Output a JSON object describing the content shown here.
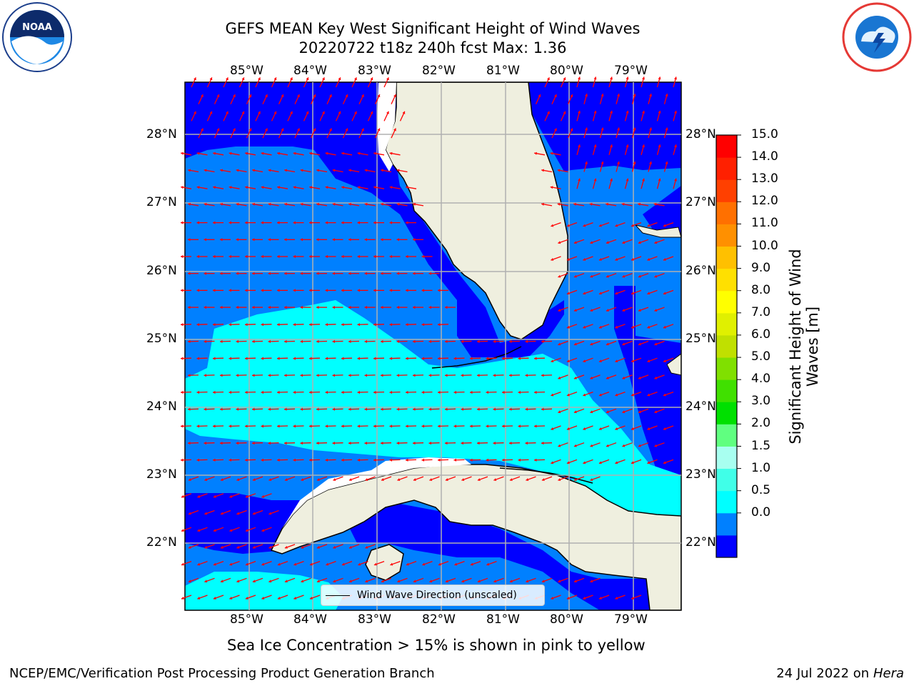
{
  "title": {
    "line1": "GEFS MEAN Key West Significant Height of Wind Waves",
    "line2": "20220722 t18z 240h fcst   Max: 1.36"
  },
  "axes": {
    "lon_labels": [
      "85°W",
      "84°W",
      "83°W",
      "82°W",
      "81°W",
      "80°W",
      "79°W"
    ],
    "lat_labels": [
      "28°N",
      "27°N",
      "26°N",
      "25°N",
      "24°N",
      "23°N",
      "22°N"
    ]
  },
  "legend": {
    "label": "Wind Wave Direction (unscaled)"
  },
  "colorbar": {
    "label": "Significant Height of Wind Waves [m]",
    "ticks": [
      "15.0",
      "14.0",
      "13.0",
      "12.0",
      "11.0",
      "10.0",
      "9.0",
      "8.0",
      "7.0",
      "6.0",
      "5.0",
      "4.0",
      "3.0",
      "2.0",
      "1.5",
      "1.0",
      "0.5",
      "0.0"
    ],
    "colors": [
      "#0000ff",
      "#0080ff",
      "#00ffff",
      "#40ffe8",
      "#a8fff0",
      "#60ff80",
      "#00e000",
      "#40e000",
      "#80e000",
      "#c0e000",
      "#e0f000",
      "#ffff00",
      "#ffe000",
      "#ffc000",
      "#ff9000",
      "#ff7000",
      "#ff4000",
      "#ff2000",
      "#ff0000"
    ]
  },
  "colors": {
    "land": "#efefdf",
    "arrow": "#ff0000",
    "grid": "#b0b0b0"
  },
  "sea_ice_note": "Sea Ice Concentration > 15% is shown in pink to yellow",
  "footer": {
    "left": "NCEP/EMC/Verification Post Processing Product Generation Branch",
    "right_date": "24 Jul 2022 on",
    "right_host": "Hera"
  }
}
